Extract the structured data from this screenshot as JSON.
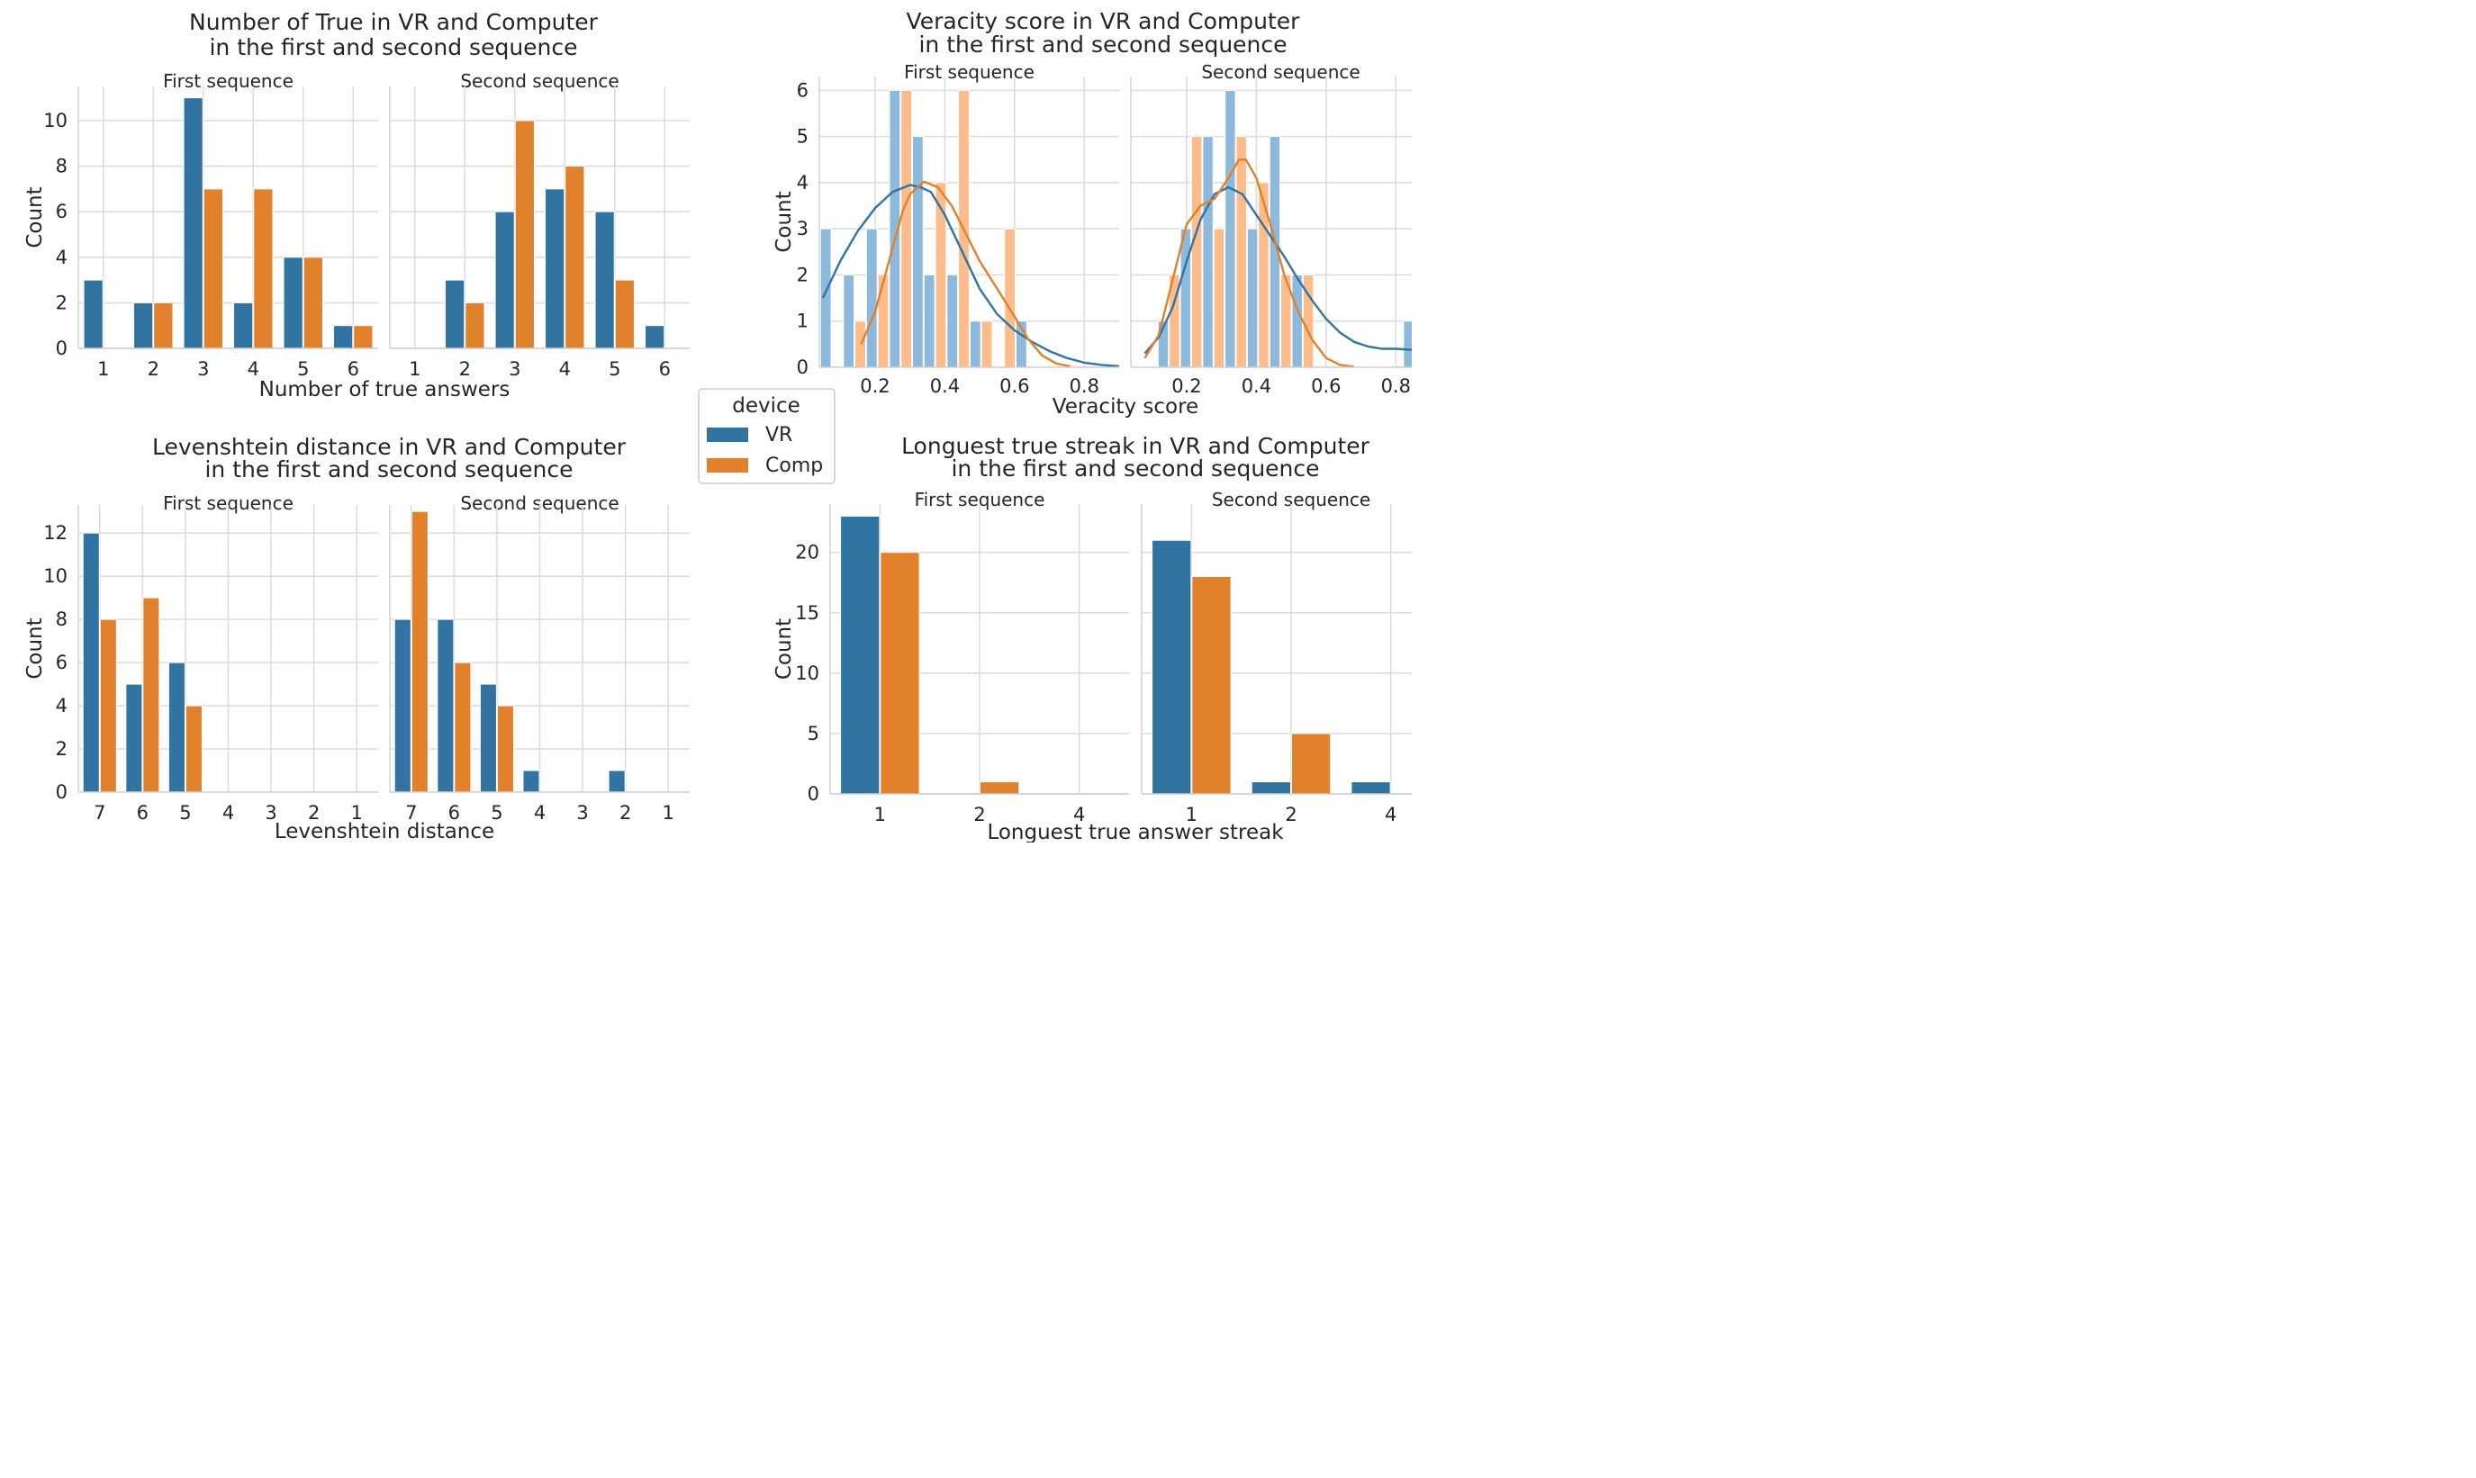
{
  "colors": {
    "VR": "#3274a1",
    "Comp": "#e1812c",
    "VR_light": "#8db9dc",
    "Comp_light": "#fdbc89"
  },
  "legend": {
    "title": "device",
    "items": [
      "VR",
      "Comp"
    ]
  },
  "chart_data": [
    {
      "type": "bar",
      "title": "Number of True in VR and Computer\nin the first and second sequence",
      "xlabel": "Number of true answers",
      "ylabel": "Count",
      "ylim": [
        0,
        11.5
      ],
      "yticks": [
        0,
        2,
        4,
        6,
        8,
        10
      ],
      "grid": true,
      "facets": [
        {
          "name": "First sequence",
          "categories": [
            "1",
            "2",
            "3",
            "4",
            "5",
            "6"
          ],
          "series": [
            {
              "name": "VR",
              "values": [
                3,
                2,
                11,
                2,
                4,
                1
              ]
            },
            {
              "name": "Comp",
              "values": [
                0,
                2,
                7,
                7,
                4,
                1
              ]
            }
          ]
        },
        {
          "name": "Second sequence",
          "categories": [
            "1",
            "2",
            "3",
            "4",
            "5",
            "6"
          ],
          "series": [
            {
              "name": "VR",
              "values": [
                0,
                3,
                6,
                7,
                6,
                1
              ]
            },
            {
              "name": "Comp",
              "values": [
                0,
                2,
                10,
                8,
                3,
                0
              ]
            }
          ]
        }
      ]
    },
    {
      "type": "histogram",
      "title": "Veracity score in VR and Computer\nin the first and second sequence",
      "xlabel": "Veracity score",
      "ylabel": "Count",
      "ylim": [
        0,
        6.3
      ],
      "yticks": [
        0,
        1,
        2,
        3,
        4,
        5,
        6
      ],
      "xlim": [
        0.04,
        0.9
      ],
      "xticks": [
        0.2,
        0.4,
        0.6,
        0.8
      ],
      "grid": true,
      "kde": true,
      "facets": [
        {
          "name": "First sequence",
          "xlim": [
            0.04,
            0.9
          ],
          "xticks": [
            0.2,
            0.4,
            0.6,
            0.8
          ],
          "bins": [
            {
              "x0": 0.042,
              "x1": 0.075,
              "VR": 3,
              "Comp": 0
            },
            {
              "x0": 0.108,
              "x1": 0.141,
              "VR": 2,
              "Comp": 0
            },
            {
              "x0": 0.141,
              "x1": 0.174,
              "VR": 0,
              "Comp": 1
            },
            {
              "x0": 0.174,
              "x1": 0.207,
              "VR": 3,
              "Comp": 0
            },
            {
              "x0": 0.207,
              "x1": 0.24,
              "VR": 0,
              "Comp": 2
            },
            {
              "x0": 0.24,
              "x1": 0.273,
              "VR": 6,
              "Comp": 0
            },
            {
              "x0": 0.273,
              "x1": 0.306,
              "VR": 0,
              "Comp": 6
            },
            {
              "x0": 0.306,
              "x1": 0.339,
              "VR": 5,
              "Comp": 0
            },
            {
              "x0": 0.339,
              "x1": 0.372,
              "VR": 2,
              "Comp": 0
            },
            {
              "x0": 0.372,
              "x1": 0.405,
              "VR": 0,
              "Comp": 4
            },
            {
              "x0": 0.405,
              "x1": 0.438,
              "VR": 2,
              "Comp": 0
            },
            {
              "x0": 0.438,
              "x1": 0.471,
              "VR": 0,
              "Comp": 6
            },
            {
              "x0": 0.471,
              "x1": 0.504,
              "VR": 1,
              "Comp": 0
            },
            {
              "x0": 0.504,
              "x1": 0.537,
              "VR": 0,
              "Comp": 1
            },
            {
              "x0": 0.57,
              "x1": 0.603,
              "VR": 0,
              "Comp": 3
            },
            {
              "x0": 0.603,
              "x1": 0.636,
              "VR": 1,
              "Comp": 0
            }
          ],
          "kde": {
            "VR": {
              "x": [
                0.05,
                0.1,
                0.15,
                0.2,
                0.25,
                0.3,
                0.33,
                0.36,
                0.4,
                0.45,
                0.5,
                0.55,
                0.6,
                0.65,
                0.7,
                0.75,
                0.8,
                0.85,
                0.9
              ],
              "y": [
                1.5,
                2.3,
                2.95,
                3.45,
                3.8,
                3.95,
                3.9,
                3.8,
                3.3,
                2.5,
                1.7,
                1.15,
                0.8,
                0.55,
                0.35,
                0.2,
                0.1,
                0.05,
                0.02
              ]
            },
            "Comp": {
              "x": [
                0.16,
                0.2,
                0.24,
                0.28,
                0.3,
                0.34,
                0.38,
                0.42,
                0.46,
                0.5,
                0.55,
                0.6,
                0.64,
                0.68,
                0.72,
                0.76
              ],
              "y": [
                0.5,
                1.2,
                2.3,
                3.4,
                3.75,
                4.02,
                3.9,
                3.5,
                2.9,
                2.3,
                1.7,
                1.1,
                0.6,
                0.25,
                0.08,
                0.02
              ]
            }
          }
        },
        {
          "name": "Second sequence",
          "xlim": [
            0.04,
            0.9
          ],
          "xticks": [
            0.2,
            0.4,
            0.6,
            0.8
          ],
          "bins": [
            {
              "x0": 0.117,
              "x1": 0.149,
              "VR": 1,
              "Comp": 0
            },
            {
              "x0": 0.149,
              "x1": 0.181,
              "VR": 0,
              "Comp": 2
            },
            {
              "x0": 0.181,
              "x1": 0.213,
              "VR": 3,
              "Comp": 0
            },
            {
              "x0": 0.213,
              "x1": 0.245,
              "VR": 0,
              "Comp": 5
            },
            {
              "x0": 0.245,
              "x1": 0.277,
              "VR": 5,
              "Comp": 0
            },
            {
              "x0": 0.277,
              "x1": 0.309,
              "VR": 0,
              "Comp": 3
            },
            {
              "x0": 0.309,
              "x1": 0.341,
              "VR": 6,
              "Comp": 0
            },
            {
              "x0": 0.341,
              "x1": 0.373,
              "VR": 0,
              "Comp": 5
            },
            {
              "x0": 0.373,
              "x1": 0.405,
              "VR": 3,
              "Comp": 0
            },
            {
              "x0": 0.405,
              "x1": 0.437,
              "VR": 0,
              "Comp": 4
            },
            {
              "x0": 0.437,
              "x1": 0.469,
              "VR": 5,
              "Comp": 0
            },
            {
              "x0": 0.469,
              "x1": 0.501,
              "VR": 0,
              "Comp": 2
            },
            {
              "x0": 0.501,
              "x1": 0.533,
              "VR": 2,
              "Comp": 0
            },
            {
              "x0": 0.533,
              "x1": 0.565,
              "VR": 0,
              "Comp": 2
            },
            {
              "x0": 0.821,
              "x1": 0.853,
              "VR": 1,
              "Comp": 0
            }
          ],
          "kde": {
            "VR": {
              "x": [
                0.08,
                0.12,
                0.16,
                0.2,
                0.24,
                0.28,
                0.32,
                0.36,
                0.4,
                0.44,
                0.48,
                0.52,
                0.56,
                0.6,
                0.64,
                0.68,
                0.72,
                0.76,
                0.8,
                0.84,
                0.88
              ],
              "y": [
                0.3,
                0.65,
                1.3,
                2.3,
                3.2,
                3.75,
                3.9,
                3.75,
                3.3,
                2.85,
                2.4,
                1.9,
                1.45,
                1.05,
                0.75,
                0.55,
                0.45,
                0.4,
                0.4,
                0.38,
                0.35
              ]
            },
            "Comp": {
              "x": [
                0.08,
                0.12,
                0.16,
                0.2,
                0.24,
                0.28,
                0.32,
                0.35,
                0.37,
                0.4,
                0.44,
                0.48,
                0.52,
                0.56,
                0.6,
                0.64,
                0.68
              ],
              "y": [
                0.2,
                0.7,
                1.9,
                3.1,
                3.5,
                3.65,
                4.1,
                4.5,
                4.5,
                4.1,
                3.1,
                2.0,
                1.2,
                0.6,
                0.2,
                0.05,
                0.01
              ]
            }
          }
        }
      ]
    },
    {
      "type": "bar",
      "title": "Levenshtein distance in VR and Computer\nin the first and second sequence",
      "xlabel": "Levenshtein distance",
      "ylabel": "Count",
      "ylim": [
        0,
        13.3
      ],
      "yticks": [
        0,
        2,
        4,
        6,
        8,
        10,
        12
      ],
      "grid": true,
      "facets": [
        {
          "name": "First sequence",
          "categories": [
            "7",
            "6",
            "5",
            "4",
            "3",
            "2",
            "1"
          ],
          "series": [
            {
              "name": "VR",
              "values": [
                12,
                5,
                6,
                0,
                0,
                0,
                0
              ]
            },
            {
              "name": "Comp",
              "values": [
                8,
                9,
                4,
                0,
                0,
                0,
                0
              ]
            }
          ]
        },
        {
          "name": "Second sequence",
          "categories": [
            "7",
            "6",
            "5",
            "4",
            "3",
            "2",
            "1"
          ],
          "series": [
            {
              "name": "VR",
              "values": [
                8,
                8,
                5,
                1,
                0,
                1,
                0
              ]
            },
            {
              "name": "Comp",
              "values": [
                13,
                6,
                4,
                0,
                0,
                0,
                0
              ]
            }
          ]
        }
      ]
    },
    {
      "type": "bar",
      "title": "Longuest true streak in VR and Computer\nin the first and second sequence",
      "xlabel": "Longuest true answer streak",
      "ylabel": "Count",
      "ylim": [
        0,
        24
      ],
      "yticks": [
        0,
        5,
        10,
        15,
        20
      ],
      "grid": true,
      "facets": [
        {
          "name": "First sequence",
          "categories": [
            "1",
            "2",
            "4"
          ],
          "series": [
            {
              "name": "VR",
              "values": [
                23,
                0,
                0
              ]
            },
            {
              "name": "Comp",
              "values": [
                20,
                1,
                0
              ]
            }
          ]
        },
        {
          "name": "Second sequence",
          "categories": [
            "1",
            "2",
            "4"
          ],
          "series": [
            {
              "name": "VR",
              "values": [
                21,
                1,
                1
              ]
            },
            {
              "name": "Comp",
              "values": [
                18,
                5,
                0
              ]
            }
          ]
        }
      ]
    }
  ]
}
